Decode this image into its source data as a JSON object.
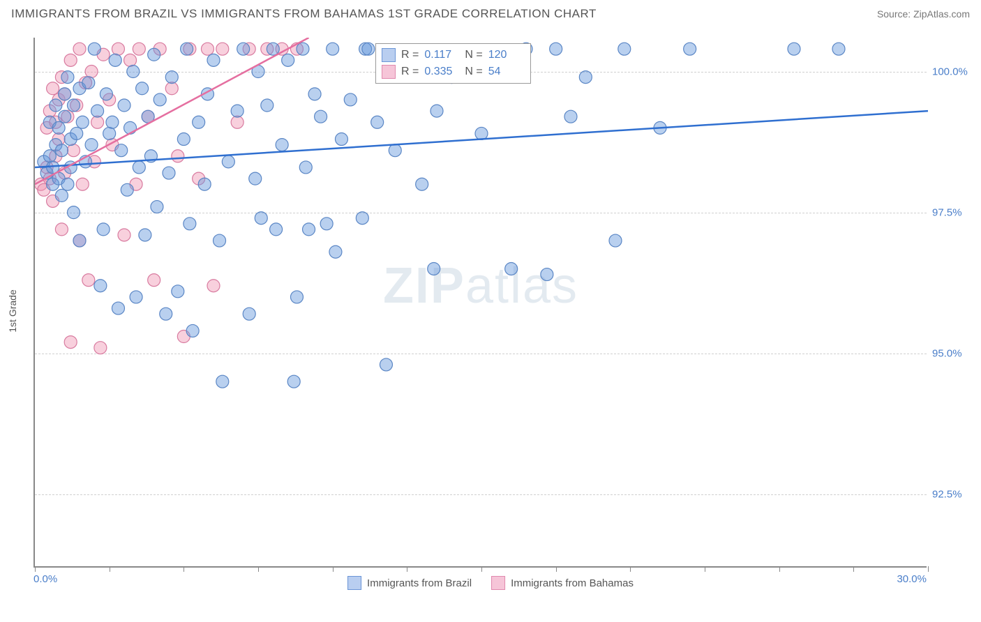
{
  "title": "IMMIGRANTS FROM BRAZIL VS IMMIGRANTS FROM BAHAMAS 1ST GRADE CORRELATION CHART",
  "source_label": "Source:",
  "source_value": "ZipAtlas.com",
  "watermark_a": "ZIP",
  "watermark_b": "atlas",
  "chart": {
    "type": "scatter",
    "background_color": "#ffffff",
    "grid_color": "#d0d0d0",
    "axis_color": "#888888",
    "text_color": "#555555",
    "value_color": "#4a7ec9",
    "xlim": [
      0,
      30
    ],
    "ylim": [
      91.2,
      100.6
    ],
    "x_ticks": [
      0,
      2.5,
      5,
      7.5,
      10,
      12.5,
      15,
      17.5,
      20,
      22.5,
      25,
      27.5,
      30
    ],
    "x_tick_labels": {
      "0": "0.0%",
      "30": "30.0%"
    },
    "y_ticks": [
      92.5,
      95.0,
      97.5,
      100.0
    ],
    "y_tick_labels": [
      "92.5%",
      "95.0%",
      "97.5%",
      "100.0%"
    ],
    "y_axis_label": "1st Grade",
    "marker_radius": 9,
    "series": [
      {
        "name": "Immigrants from Brazil",
        "color_fill": "rgba(100,150,220,0.45)",
        "color_stroke": "#5a86c5",
        "swatch_fill": "#b9cef0",
        "swatch_border": "#6b95d6",
        "legend_R_label": "R =",
        "legend_R_value": "0.117",
        "legend_N_label": "N =",
        "legend_N_value": "120",
        "trend": {
          "x1": 0,
          "y1": 98.3,
          "x2": 30,
          "y2": 99.3,
          "color": "#2f6fd0"
        },
        "points": [
          [
            0.3,
            98.4
          ],
          [
            0.4,
            98.2
          ],
          [
            0.5,
            98.5
          ],
          [
            0.5,
            99.1
          ],
          [
            0.6,
            98.0
          ],
          [
            0.6,
            98.3
          ],
          [
            0.7,
            98.7
          ],
          [
            0.7,
            99.4
          ],
          [
            0.8,
            98.1
          ],
          [
            0.8,
            99.0
          ],
          [
            0.9,
            97.8
          ],
          [
            0.9,
            98.6
          ],
          [
            1.0,
            99.2
          ],
          [
            1.0,
            99.6
          ],
          [
            1.1,
            98.0
          ],
          [
            1.1,
            99.9
          ],
          [
            1.2,
            98.3
          ],
          [
            1.2,
            98.8
          ],
          [
            1.3,
            97.5
          ],
          [
            1.3,
            99.4
          ],
          [
            1.4,
            98.9
          ],
          [
            1.5,
            99.7
          ],
          [
            1.5,
            97.0
          ],
          [
            1.6,
            99.1
          ],
          [
            1.7,
            98.4
          ],
          [
            1.8,
            99.8
          ],
          [
            1.9,
            98.7
          ],
          [
            2.0,
            100.4
          ],
          [
            2.1,
            99.3
          ],
          [
            2.2,
            96.2
          ],
          [
            2.3,
            97.2
          ],
          [
            2.4,
            99.6
          ],
          [
            2.5,
            98.9
          ],
          [
            2.6,
            99.1
          ],
          [
            2.7,
            100.2
          ],
          [
            2.8,
            95.8
          ],
          [
            2.9,
            98.6
          ],
          [
            3.0,
            99.4
          ],
          [
            3.1,
            97.9
          ],
          [
            3.2,
            99.0
          ],
          [
            3.3,
            100.0
          ],
          [
            3.4,
            96.0
          ],
          [
            3.5,
            98.3
          ],
          [
            3.6,
            99.7
          ],
          [
            3.7,
            97.1
          ],
          [
            3.8,
            99.2
          ],
          [
            3.9,
            98.5
          ],
          [
            4.0,
            100.3
          ],
          [
            4.1,
            97.6
          ],
          [
            4.2,
            99.5
          ],
          [
            4.4,
            95.7
          ],
          [
            4.5,
            98.2
          ],
          [
            4.6,
            99.9
          ],
          [
            4.8,
            96.1
          ],
          [
            5.0,
            98.8
          ],
          [
            5.1,
            100.4
          ],
          [
            5.2,
            97.3
          ],
          [
            5.3,
            95.4
          ],
          [
            5.5,
            99.1
          ],
          [
            5.7,
            98.0
          ],
          [
            5.8,
            99.6
          ],
          [
            6.0,
            100.2
          ],
          [
            6.2,
            97.0
          ],
          [
            6.3,
            94.5
          ],
          [
            6.5,
            98.4
          ],
          [
            6.8,
            99.3
          ],
          [
            7.0,
            100.4
          ],
          [
            7.2,
            95.7
          ],
          [
            7.4,
            98.1
          ],
          [
            7.5,
            100.0
          ],
          [
            7.6,
            97.4
          ],
          [
            7.8,
            99.4
          ],
          [
            8.0,
            100.4
          ],
          [
            8.1,
            97.2
          ],
          [
            8.3,
            98.7
          ],
          [
            8.5,
            100.2
          ],
          [
            8.7,
            94.5
          ],
          [
            8.8,
            96.0
          ],
          [
            9.0,
            100.4
          ],
          [
            9.1,
            98.3
          ],
          [
            9.2,
            97.2
          ],
          [
            9.4,
            99.6
          ],
          [
            9.6,
            99.2
          ],
          [
            9.8,
            97.3
          ],
          [
            10.0,
            100.4
          ],
          [
            10.1,
            96.8
          ],
          [
            10.3,
            98.8
          ],
          [
            10.6,
            99.5
          ],
          [
            11.0,
            97.4
          ],
          [
            11.1,
            100.4
          ],
          [
            11.2,
            100.4
          ],
          [
            11.5,
            99.1
          ],
          [
            11.8,
            94.8
          ],
          [
            12.1,
            98.6
          ],
          [
            12.5,
            100.3
          ],
          [
            13.0,
            98.0
          ],
          [
            13.4,
            96.5
          ],
          [
            13.5,
            99.3
          ],
          [
            14.0,
            99.9
          ],
          [
            15.0,
            98.9
          ],
          [
            16.0,
            96.5
          ],
          [
            16.5,
            100.4
          ],
          [
            17.2,
            96.4
          ],
          [
            17.5,
            100.4
          ],
          [
            18.0,
            99.2
          ],
          [
            18.5,
            99.9
          ],
          [
            19.5,
            97.0
          ],
          [
            19.8,
            100.4
          ],
          [
            21.0,
            99.0
          ],
          [
            22.0,
            100.4
          ],
          [
            25.5,
            100.4
          ],
          [
            27.0,
            100.4
          ]
        ]
      },
      {
        "name": "Immigrants from Bahamas",
        "color_fill": "rgba(240,150,180,0.45)",
        "color_stroke": "#d87a9f",
        "swatch_fill": "#f6c5d8",
        "swatch_border": "#e089ae",
        "legend_R_label": "R =",
        "legend_R_value": "0.335",
        "legend_N_label": "N =",
        "legend_N_value": "54",
        "trend": {
          "x1": 0,
          "y1": 98.0,
          "x2": 9.2,
          "y2": 100.6,
          "color": "#e56fa0"
        },
        "points": [
          [
            0.2,
            98.0
          ],
          [
            0.3,
            97.9
          ],
          [
            0.4,
            98.3
          ],
          [
            0.4,
            99.0
          ],
          [
            0.5,
            98.1
          ],
          [
            0.5,
            99.3
          ],
          [
            0.6,
            97.7
          ],
          [
            0.6,
            99.7
          ],
          [
            0.7,
            98.5
          ],
          [
            0.7,
            99.1
          ],
          [
            0.8,
            98.8
          ],
          [
            0.8,
            99.5
          ],
          [
            0.9,
            97.2
          ],
          [
            0.9,
            99.9
          ],
          [
            1.0,
            98.2
          ],
          [
            1.0,
            99.6
          ],
          [
            1.1,
            99.2
          ],
          [
            1.2,
            95.2
          ],
          [
            1.2,
            100.2
          ],
          [
            1.3,
            98.6
          ],
          [
            1.4,
            99.4
          ],
          [
            1.5,
            97.0
          ],
          [
            1.5,
            100.4
          ],
          [
            1.6,
            98.0
          ],
          [
            1.7,
            99.8
          ],
          [
            1.8,
            96.3
          ],
          [
            1.9,
            100.0
          ],
          [
            2.0,
            98.4
          ],
          [
            2.1,
            99.1
          ],
          [
            2.2,
            95.1
          ],
          [
            2.3,
            100.3
          ],
          [
            2.5,
            99.5
          ],
          [
            2.6,
            98.7
          ],
          [
            2.8,
            100.4
          ],
          [
            3.0,
            97.1
          ],
          [
            3.2,
            100.2
          ],
          [
            3.4,
            98.0
          ],
          [
            3.5,
            100.4
          ],
          [
            3.8,
            99.2
          ],
          [
            4.0,
            96.3
          ],
          [
            4.2,
            100.4
          ],
          [
            4.6,
            99.7
          ],
          [
            4.8,
            98.5
          ],
          [
            5.0,
            95.3
          ],
          [
            5.2,
            100.4
          ],
          [
            5.5,
            98.1
          ],
          [
            5.8,
            100.4
          ],
          [
            6.0,
            96.2
          ],
          [
            6.3,
            100.4
          ],
          [
            6.8,
            99.1
          ],
          [
            7.2,
            100.4
          ],
          [
            7.8,
            100.4
          ],
          [
            8.3,
            100.4
          ],
          [
            8.8,
            100.4
          ]
        ]
      }
    ],
    "legend_bottom": [
      {
        "label": "Immigrants from Brazil",
        "fill": "#b9cef0",
        "border": "#6b95d6"
      },
      {
        "label": "Immigrants from Bahamas",
        "fill": "#f6c5d8",
        "border": "#e089ae"
      }
    ]
  }
}
